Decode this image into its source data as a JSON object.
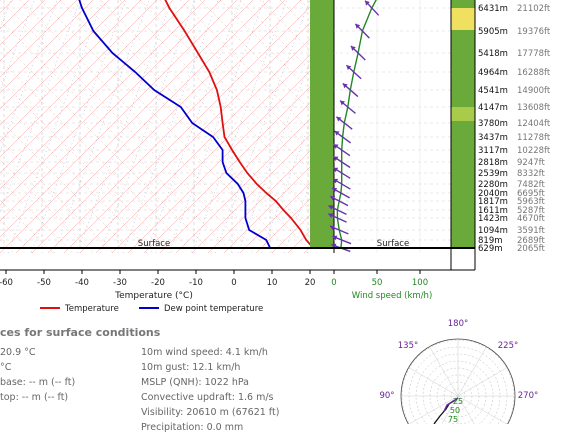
{
  "chart_data": {
    "type": "line",
    "title": "",
    "temperature_axis": {
      "xlabel": "Temperature (°C)",
      "xlim": [
        -62,
        28
      ],
      "ticks": [
        -60,
        -50,
        -40,
        -30,
        -20,
        -10,
        0,
        10,
        20
      ]
    },
    "wind_axis": {
      "xlabel": "Wind speed (km/h)",
      "xlim": [
        0,
        150
      ],
      "ticks": [
        0,
        50,
        100
      ]
    },
    "series": [
      {
        "name": "Temperature",
        "color": "#dd1111",
        "points": [
          [
            20.9,
            2065
          ],
          [
            19,
            2689
          ],
          [
            17.5,
            3591
          ],
          [
            15,
            4670
          ],
          [
            13,
            5287
          ],
          [
            11,
            5963
          ],
          [
            8.5,
            6695
          ],
          [
            6,
            7482
          ],
          [
            3.5,
            8332
          ],
          [
            1.5,
            9247
          ],
          [
            -0.5,
            10228
          ],
          [
            -2.5,
            11278
          ],
          [
            -3,
            12404
          ],
          [
            -3.5,
            13608
          ],
          [
            -4.5,
            14900
          ],
          [
            -6.5,
            16288
          ],
          [
            -9.5,
            17778
          ],
          [
            -13,
            19376
          ],
          [
            -17,
            21102
          ],
          [
            -20,
            22800
          ]
        ]
      },
      {
        "name": "Dew point temperature",
        "color": "#0000cc",
        "points": [
          [
            9.5,
            2065
          ],
          [
            8.5,
            2689
          ],
          [
            4,
            3591
          ],
          [
            3,
            4670
          ],
          [
            3,
            5287
          ],
          [
            3,
            5963
          ],
          [
            2.5,
            6695
          ],
          [
            1,
            7482
          ],
          [
            -2,
            8332
          ],
          [
            -3,
            9247
          ],
          [
            -3,
            10228
          ],
          [
            -5.5,
            11278
          ],
          [
            -11,
            12404
          ],
          [
            -14,
            13608
          ],
          [
            -21,
            14900
          ],
          [
            -26,
            16288
          ],
          [
            -32,
            17778
          ],
          [
            -37,
            19376
          ],
          [
            -40,
            21102
          ],
          [
            -42,
            22800
          ]
        ]
      },
      {
        "name": "Wind speed",
        "color": "#228822",
        "points": [
          [
            8,
            2065
          ],
          [
            9,
            2689
          ],
          [
            6,
            3591
          ],
          [
            4,
            4670
          ],
          [
            4,
            5287
          ],
          [
            6,
            5963
          ],
          [
            8,
            6695
          ],
          [
            9,
            7482
          ],
          [
            9,
            8332
          ],
          [
            9,
            9247
          ],
          [
            9,
            10228
          ],
          [
            10,
            11278
          ],
          [
            12,
            12404
          ],
          [
            16,
            13608
          ],
          [
            19,
            14900
          ],
          [
            23,
            16288
          ],
          [
            28,
            17778
          ],
          [
            33,
            19376
          ],
          [
            44,
            21102
          ],
          [
            58,
            22800
          ]
        ]
      }
    ],
    "levels": [
      {
        "m": "629m",
        "ft": "2065ft"
      },
      {
        "m": "819m",
        "ft": "2689ft"
      },
      {
        "m": "1094m",
        "ft": "3591ft"
      },
      {
        "m": "1423m",
        "ft": "4670ft"
      },
      {
        "m": "1611m",
        "ft": "5287ft"
      },
      {
        "m": "1817m",
        "ft": "5963ft"
      },
      {
        "m": "2040m",
        "ft": "6695ft"
      },
      {
        "m": "2280m",
        "ft": "7482ft"
      },
      {
        "m": "2539m",
        "ft": "8332ft"
      },
      {
        "m": "2818m",
        "ft": "9247ft"
      },
      {
        "m": "3117m",
        "ft": "10228ft"
      },
      {
        "m": "3437m",
        "ft": "11278ft"
      },
      {
        "m": "3780m",
        "ft": "12404ft"
      },
      {
        "m": "4147m",
        "ft": "13608ft"
      },
      {
        "m": "4541m",
        "ft": "14900ft"
      },
      {
        "m": "4964m",
        "ft": "16288ft"
      },
      {
        "m": "5418m",
        "ft": "17778ft"
      },
      {
        "m": "5905m",
        "ft": "19376ft"
      },
      {
        "m": "6431m",
        "ft": "21102ft"
      }
    ],
    "surface_label": "Surface",
    "legend": [
      "Temperature",
      "Dew point temperature"
    ],
    "hodograph": {
      "directions": [
        "180°",
        "135°",
        "225°",
        "90°",
        "270°"
      ],
      "ring_labels": [
        "25",
        "50",
        "75"
      ]
    }
  },
  "info": {
    "heading": "ces for surface conditions",
    "left": [
      "20.9 °C",
      "°C",
      "base: -- m (-- ft)",
      "top: -- m (-- ft)"
    ],
    "right": [
      "10m wind speed: 4.1 km/h",
      "10m gust: 12.1 km/h",
      "MSLP (QNH): 1022 hPa",
      "Convective updraft: 1.6 m/s",
      "Visibility: 20610 m (67621 ft)",
      "Precipitation: 0.0 mm"
    ]
  }
}
